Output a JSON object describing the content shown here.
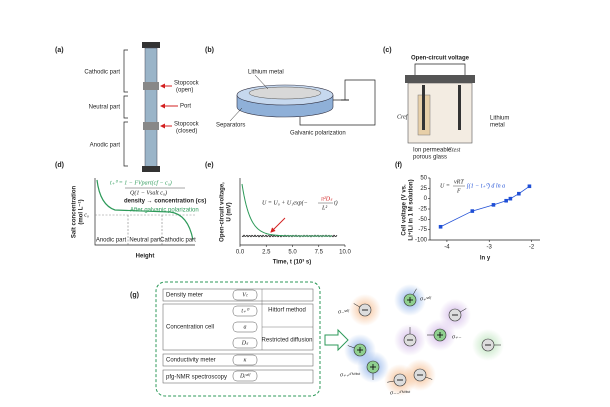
{
  "panels": {
    "a": {
      "label": "(a)",
      "parts": [
        "Cathodic part",
        "Neutral part",
        "Anodic part"
      ],
      "callouts": [
        "Stopcock",
        "(open)",
        "Port",
        "Stopcock",
        "(closed)"
      ]
    },
    "b": {
      "label": "(b)",
      "callouts": [
        "Lithium metal",
        "Separators",
        "Galvanic polarization"
      ]
    },
    "c": {
      "label": "(c)",
      "callouts": [
        "Open-circuit voltage",
        "Lithium",
        "metal",
        "Cref",
        "Ion permeable",
        "porous glass",
        "Ctest"
      ]
    },
    "d": {
      "label": "(d)",
      "ylabel": [
        "Salt concentration",
        "(mol L⁻¹)"
      ],
      "xlabel": "Height",
      "c0": "c₀",
      "equation": [
        "t₊⁰ = 1 − FVpart(cf − c₀)",
        "Q(1 − Vsalt c₀)"
      ],
      "annotations": [
        "density → concentration (cs)",
        "After galvanic polarization"
      ],
      "regions": [
        "Anodic part",
        "Neutral part",
        "Cathodic part"
      ]
    },
    "e": {
      "label": "(e)",
      "ylabel": [
        "Open-circuit voltage,",
        "U (mV)"
      ],
      "xlabel": "Time, t (10³ s)",
      "equation": [
        "U = U₀ + U₁exp(−",
        "π²Dₛ",
        "L²",
        "t)"
      ],
      "xlim": [
        0,
        10
      ],
      "xticks": [
        {
          "value": 0,
          "label": "0.0"
        },
        {
          "value": 2.5,
          "label": "2.5"
        },
        {
          "value": 5,
          "label": "5.0"
        },
        {
          "value": 7.5,
          "label": "7.5"
        },
        {
          "value": 10,
          "label": "10.0"
        }
      ]
    },
    "f": {
      "label": "(f)",
      "ylabel": [
        "Cell voltage (V vs.",
        "Li⁺/Li in 1 M solution)"
      ],
      "xlabel": "ln y",
      "equation": [
        "U = ",
        "νRT",
        "F",
        "∫(1 − t₊⁰) d ln a"
      ],
      "xlim": [
        -4.4,
        -1.8
      ],
      "ylim": [
        -100,
        50
      ],
      "xticks": [
        -4,
        -3,
        -2
      ],
      "yticks": [
        -100,
        -75,
        -50,
        -25,
        0,
        25,
        50
      ],
      "x": [
        -4.15,
        -3.4,
        -2.9,
        -2.6,
        -2.5,
        -2.3,
        -2.05
      ],
      "y": [
        -68,
        -30,
        -15,
        -5,
        0,
        12,
        30
      ],
      "color": "#1f4fd6"
    },
    "g": {
      "label": "(g)",
      "methods": [
        "Density meter",
        "Concentration cell",
        "Conductivity meter",
        "pfg-NMR spectroscopy"
      ],
      "params": [
        "Vₜ",
        "t₊⁰",
        "a",
        "Dₛ",
        "κ",
        "Dᵢˢᵉˡᶠ"
      ],
      "techniques": [
        "Hittorf method",
        "Restricted diffusion"
      ],
      "ions": [
        "σ₋ˢᵉˡᶠ",
        "σ₊ˢᵉˡᶠ",
        "σ₊₋",
        "σ₊₊ᵈⁱˢᵗⁱⁿᶜᵗ",
        "σ₋₋ᵈⁱˢᵗⁱⁿᶜᵗ"
      ]
    }
  }
}
